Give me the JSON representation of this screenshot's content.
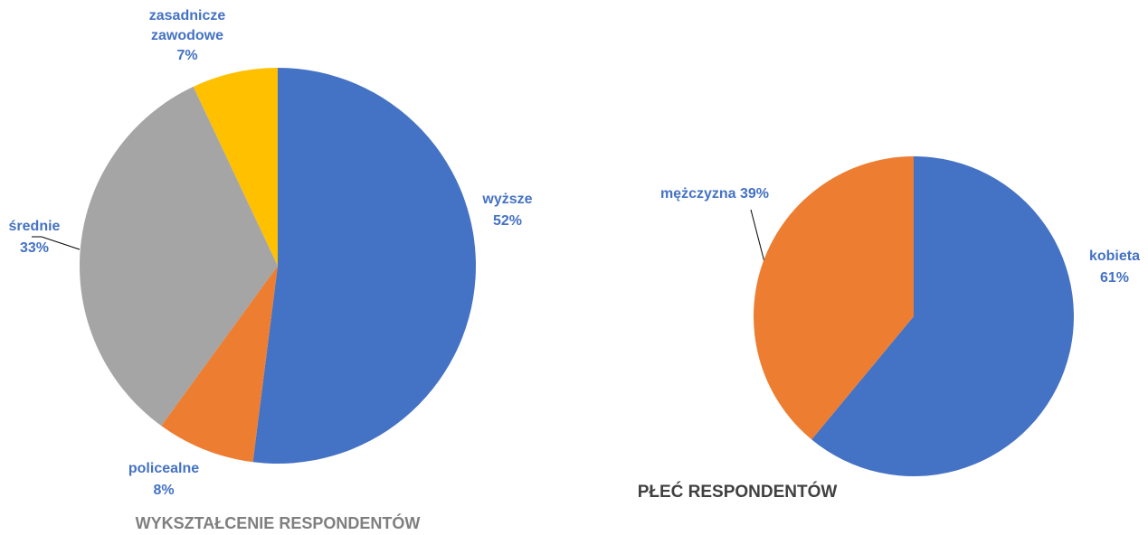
{
  "chart_data": [
    {
      "type": "pie",
      "title": "WYKSZTAŁCENIE RESPONDENTÓW",
      "categories": [
        "wyższe",
        "policealne",
        "średnie",
        "zasadnicze zawodowe"
      ],
      "values": [
        52,
        8,
        33,
        7
      ],
      "value_labels": [
        "52%",
        "8%",
        "33%",
        "7%"
      ],
      "colors": [
        "#4472c4",
        "#ed7d31",
        "#a5a5a5",
        "#ffc000"
      ]
    },
    {
      "type": "pie",
      "title": "PŁEĆ RESPONDENTÓW",
      "categories": [
        "kobieta",
        "mężczyzna"
      ],
      "values": [
        61,
        39
      ],
      "value_labels": [
        "61%",
        "39%"
      ],
      "colors": [
        "#4472c4",
        "#ed7d31"
      ]
    }
  ]
}
